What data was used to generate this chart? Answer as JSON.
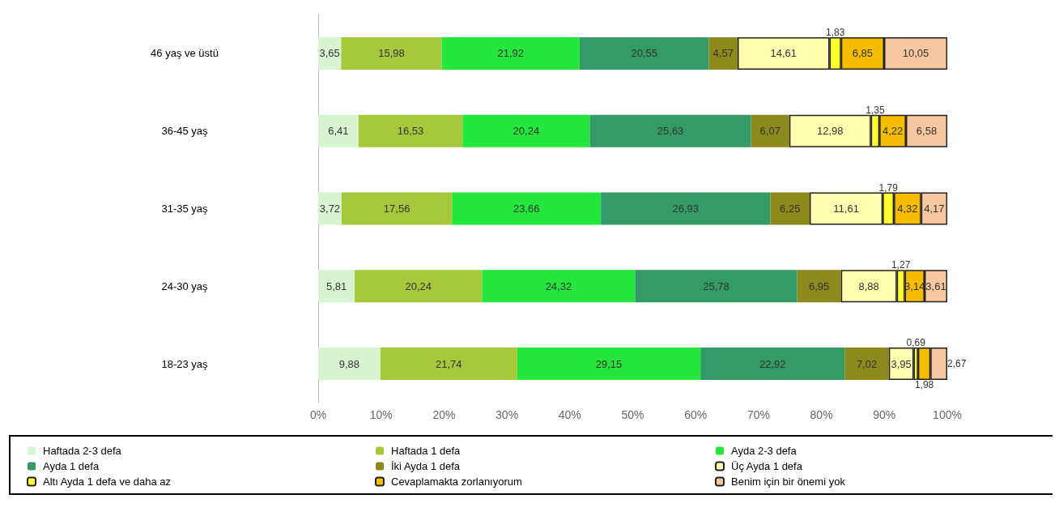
{
  "chart_data": {
    "type": "bar",
    "orientation": "horizontal",
    "stacked": true,
    "categories": [
      "46 yaş ve üstü",
      "36-45 yaş",
      "31-35 yaş",
      "24-30 yaş",
      "18-23 yaş"
    ],
    "xlim": [
      0,
      100
    ],
    "xticks": [
      {
        "value": 0,
        "label": "0%"
      },
      {
        "value": 10,
        "label": "10%"
      },
      {
        "value": 20,
        "label": "20%"
      },
      {
        "value": 30,
        "label": "30%"
      },
      {
        "value": 40,
        "label": "40%"
      },
      {
        "value": 50,
        "label": "50%"
      },
      {
        "value": 60,
        "label": "60%"
      },
      {
        "value": 70,
        "label": "70%"
      },
      {
        "value": 80,
        "label": "80%"
      },
      {
        "value": 90,
        "label": "90%"
      },
      {
        "value": 100,
        "label": "100%"
      }
    ],
    "legend": "bottom",
    "grid": false,
    "series": [
      {
        "name": "Haftada 2-3 defa",
        "color": "#d8f5d2",
        "values": [
          3.65,
          6.41,
          3.72,
          5.81,
          9.88
        ],
        "value_labels": [
          "3,65",
          "6,41",
          "3,72",
          "5,81",
          "9,88"
        ]
      },
      {
        "name": "Haftada 1 defa",
        "color": "#a8c83c",
        "values": [
          15.98,
          16.53,
          17.56,
          20.24,
          21.74
        ],
        "value_labels": [
          "15,98",
          "16,53",
          "17,56",
          "20,24",
          "21,74"
        ]
      },
      {
        "name": "Ayda 2-3 defa",
        "color": "#24e63c",
        "values": [
          21.92,
          20.24,
          23.66,
          24.32,
          29.15
        ],
        "value_labels": [
          "21,92",
          "20,24",
          "23,66",
          "24,32",
          "29,15"
        ]
      },
      {
        "name": "Ayda 1 defa",
        "color": "#349a68",
        "values": [
          20.55,
          25.63,
          26.93,
          25.78,
          22.92
        ],
        "value_labels": [
          "20,55",
          "25,63",
          "26,93",
          "25,78",
          "22,92"
        ]
      },
      {
        "name": "İki Ayda 1 defa",
        "color": "#8c8a1c",
        "values": [
          4.57,
          6.07,
          6.25,
          6.95,
          7.02
        ],
        "value_labels": [
          "4,57",
          "6,07",
          "6,25",
          "6,95",
          "7,02"
        ]
      },
      {
        "name": "Üç Ayda 1 defa",
        "color": "#ffffb0",
        "values": [
          14.61,
          12.98,
          11.61,
          8.88,
          3.95
        ],
        "value_labels": [
          "14,61",
          "12,98",
          "11,61",
          "8,88",
          "3,95"
        ]
      },
      {
        "name": "Altı Ayda 1 defa ve daha az",
        "color": "#ffff30",
        "values": [
          1.83,
          1.35,
          1.79,
          1.27,
          0.69
        ],
        "value_labels": [
          "1,83",
          "1,35",
          "1,79",
          "1,27",
          "0,69"
        ]
      },
      {
        "name": "Cevaplamakta zorlanıyorum",
        "color": "#f5bc00",
        "values": [
          6.85,
          4.22,
          4.32,
          3.14,
          1.98
        ],
        "value_labels": [
          "6,85",
          "4,22",
          "4,32",
          "3,14",
          "1,98"
        ]
      },
      {
        "name": "Benim için bir önemi yok",
        "color": "#f7c8a0",
        "values": [
          10.05,
          6.58,
          4.17,
          3.61,
          2.67
        ],
        "value_labels": [
          "10,05",
          "6,58",
          "4,17",
          "3,61",
          "2,67"
        ]
      }
    ]
  }
}
